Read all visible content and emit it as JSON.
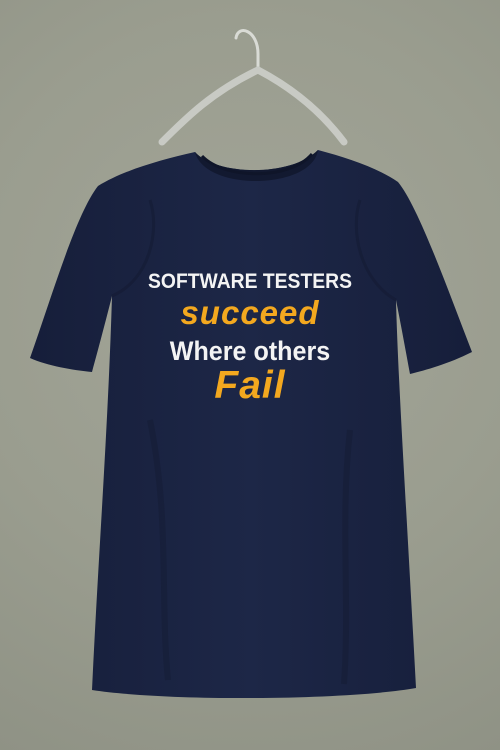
{
  "shirt": {
    "print_lines": [
      "SOFTWARE TESTERS",
      "succeed",
      "Where others",
      "Fail"
    ]
  },
  "colors": {
    "background": "#9b9e90",
    "shirt": "#1b2443",
    "print_white": "#f4f4f4",
    "print_accent": "#f3a81f",
    "hanger": "#c8cac4"
  }
}
